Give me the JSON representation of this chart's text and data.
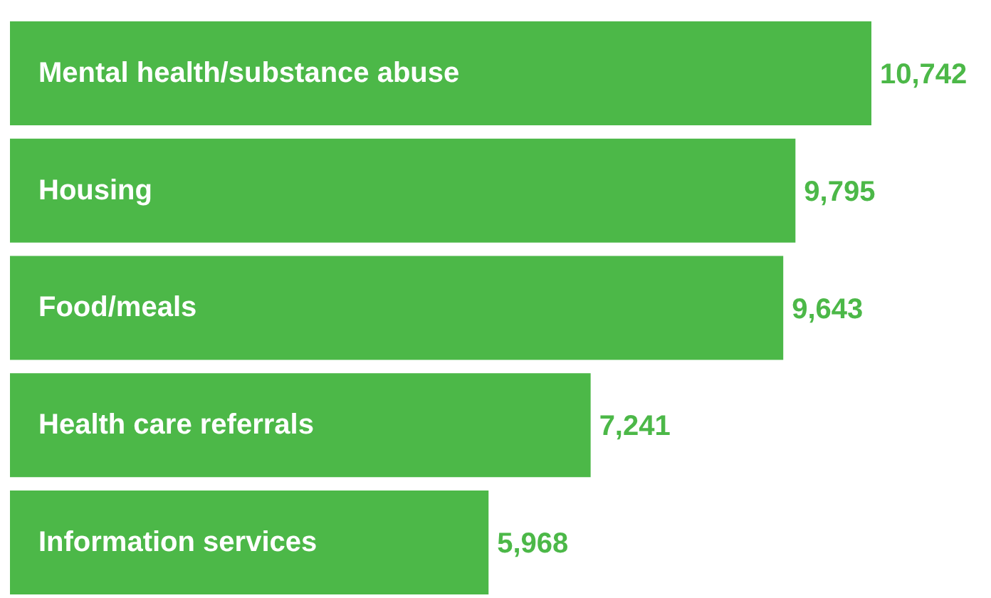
{
  "chart_data": {
    "type": "bar",
    "orientation": "horizontal",
    "categories": [
      "Mental health/substance abuse",
      "Housing",
      "Food/meals",
      "Health care referrals",
      "Information services"
    ],
    "values": [
      10742,
      9795,
      9643,
      7241,
      5968
    ],
    "color": "#4cb848",
    "value_labels": [
      "10,742",
      "9,795",
      "9,643",
      "7,241",
      "5,968"
    ],
    "grid": false,
    "legend": false
  }
}
